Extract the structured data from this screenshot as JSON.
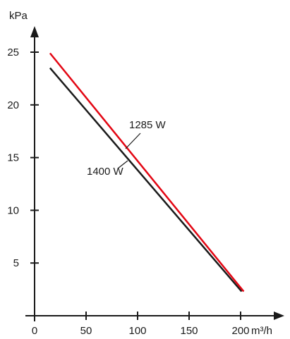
{
  "chart_data": {
    "type": "line",
    "xlabel": "m³/h",
    "ylabel": "kPa",
    "xlim": [
      0,
      200
    ],
    "ylim": [
      0,
      25
    ],
    "x_ticks": [
      0,
      50,
      100,
      150,
      200
    ],
    "y_ticks": [
      5,
      10,
      15,
      20,
      25
    ],
    "grid": false,
    "legend": "none",
    "series": [
      {
        "name": "1285 W",
        "color": "#e30613",
        "points": [
          [
            15,
            24.9
          ],
          [
            203,
            2.3
          ]
        ]
      },
      {
        "name": "1400 W",
        "color": "#1a1a1a",
        "points": [
          [
            15,
            23.5
          ],
          [
            201,
            2.3
          ]
        ]
      }
    ]
  }
}
